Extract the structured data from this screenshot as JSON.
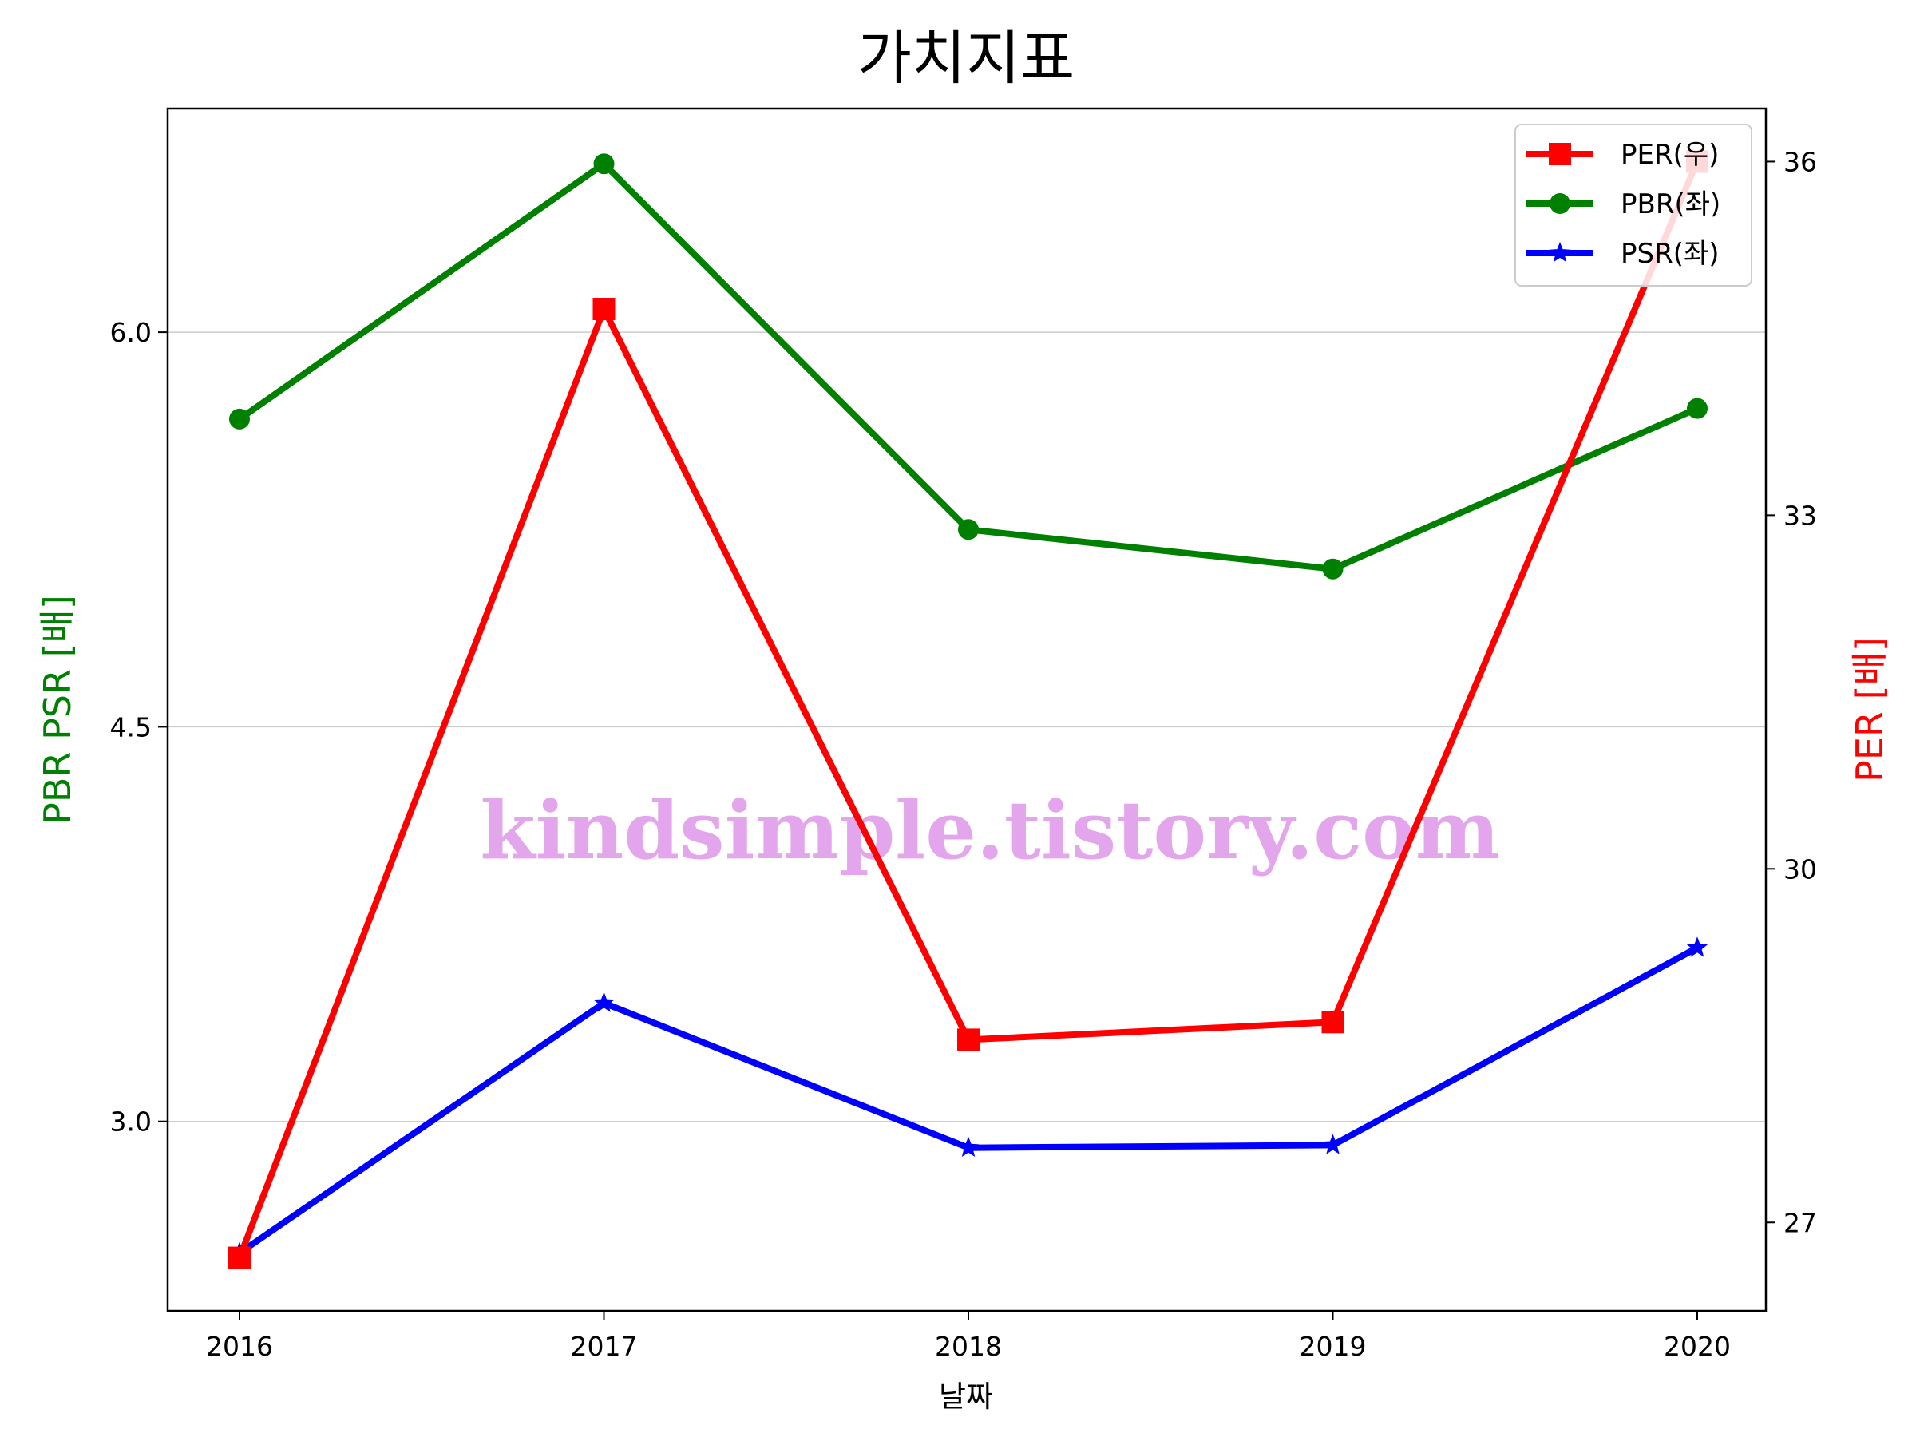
{
  "chart_data": {
    "type": "line",
    "title": "가치지표",
    "xlabel": "날짜",
    "ylabel_left": "PBR PSR [배]",
    "ylabel_right": "PER [배]",
    "categories": [
      "2016",
      "2017",
      "2018",
      "2019",
      "2020"
    ],
    "ylim_left": [
      2.28,
      6.85
    ],
    "ylim_right": [
      26.25,
      36.45
    ],
    "yticks_left": [
      "3.0",
      "4.5",
      "6.0"
    ],
    "yticks_right": [
      "27",
      "30",
      "33",
      "36"
    ],
    "grid": "horizontal (left axis)",
    "legend_position": "top-right",
    "series": [
      {
        "name": "PER(우)",
        "axis": "right",
        "color": "#ff0000",
        "marker": "square",
        "values": [
          26.7,
          34.75,
          28.55,
          28.7,
          36.0
        ]
      },
      {
        "name": "PBR(좌)",
        "axis": "left",
        "color": "#008000",
        "marker": "circle",
        "values": [
          5.67,
          6.64,
          5.25,
          5.1,
          5.71
        ]
      },
      {
        "name": "PSR(좌)",
        "axis": "left",
        "color": "#0000ff",
        "marker": "star",
        "values": [
          2.5,
          3.45,
          2.9,
          2.91,
          3.66
        ]
      }
    ]
  },
  "watermark": {
    "text": "kindsimple.tistory.com",
    "color": "#e3a6ec"
  }
}
